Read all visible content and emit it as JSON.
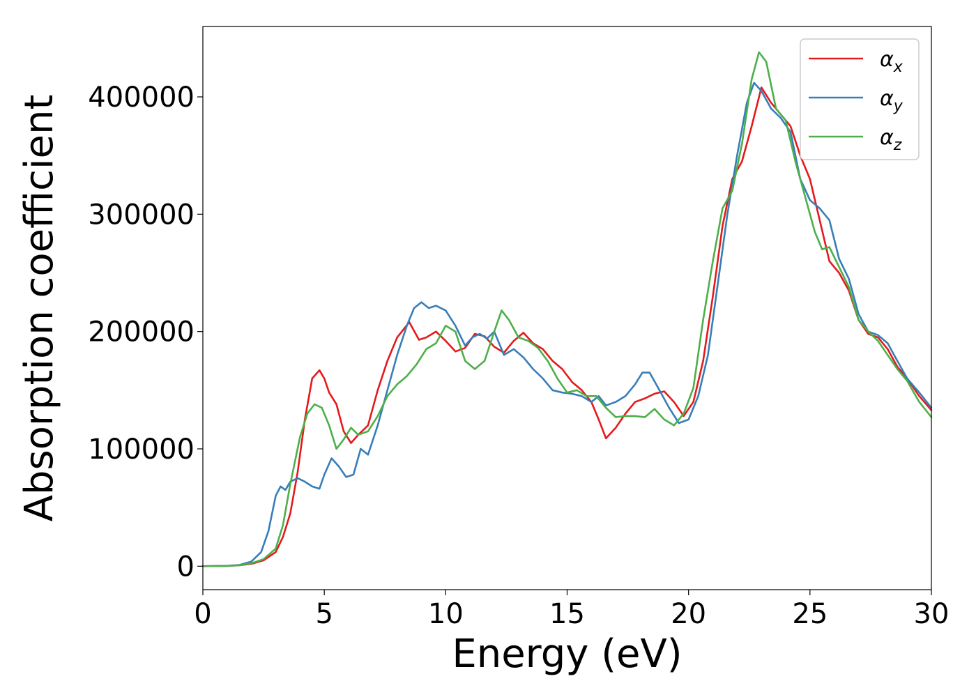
{
  "chart_data": {
    "type": "line",
    "title": "",
    "xlabel": "Energy (eV)",
    "ylabel": "Absorption coefficient",
    "xlim": [
      0,
      30
    ],
    "ylim": [
      -20000,
      460000
    ],
    "xticks": [
      0,
      5,
      10,
      15,
      20,
      25,
      30
    ],
    "yticks": [
      0,
      100000,
      200000,
      300000,
      400000
    ],
    "grid": false,
    "legend_position": "top-right",
    "series": [
      {
        "name": "αx",
        "legend_base": "α",
        "legend_sub": "x",
        "color": "#e41a1c",
        "x": [
          0,
          1,
          1.5,
          2,
          2.5,
          3,
          3.3,
          3.6,
          3.9,
          4.2,
          4.5,
          4.8,
          5.0,
          5.2,
          5.5,
          5.8,
          6.1,
          6.4,
          6.8,
          7.2,
          7.6,
          8.0,
          8.5,
          8.9,
          9.2,
          9.6,
          10.0,
          10.4,
          10.8,
          11.2,
          11.6,
          12.0,
          12.4,
          12.8,
          13.2,
          13.6,
          14.0,
          14.4,
          14.8,
          15.2,
          15.6,
          16.0,
          16.3,
          16.6,
          17.0,
          17.4,
          17.8,
          18.2,
          18.6,
          19.0,
          19.4,
          19.8,
          20.2,
          20.6,
          21.0,
          21.4,
          21.8,
          22.2,
          22.6,
          23.0,
          23.4,
          23.8,
          24.2,
          24.6,
          25.0,
          25.4,
          25.8,
          26.2,
          26.6,
          27.0,
          27.4,
          27.8,
          28.2,
          28.6,
          29.0,
          29.5,
          30.0
        ],
        "y": [
          0,
          200,
          800,
          2000,
          5000,
          12000,
          25000,
          45000,
          80000,
          125000,
          160000,
          167000,
          160000,
          148000,
          138000,
          115000,
          105000,
          112000,
          120000,
          150000,
          175000,
          195000,
          208000,
          193000,
          195000,
          200000,
          192000,
          183000,
          186000,
          198000,
          196000,
          187000,
          182000,
          192000,
          199000,
          190000,
          185000,
          175000,
          168000,
          157000,
          150000,
          140000,
          125000,
          109000,
          118000,
          130000,
          140000,
          143000,
          147000,
          149000,
          140000,
          128000,
          140000,
          175000,
          230000,
          290000,
          330000,
          345000,
          375000,
          408000,
          395000,
          385000,
          375000,
          350000,
          330000,
          295000,
          260000,
          250000,
          235000,
          210000,
          198000,
          195000,
          185000,
          170000,
          160000,
          145000,
          133000
        ]
      },
      {
        "name": "αy",
        "legend_base": "α",
        "legend_sub": "y",
        "color": "#377eb8",
        "x": [
          0,
          1,
          1.5,
          2,
          2.4,
          2.7,
          3.0,
          3.2,
          3.4,
          3.6,
          3.9,
          4.2,
          4.5,
          4.8,
          5.0,
          5.3,
          5.6,
          5.9,
          6.2,
          6.5,
          6.8,
          7.2,
          7.6,
          8.0,
          8.4,
          8.7,
          9.0,
          9.3,
          9.6,
          10.0,
          10.4,
          10.8,
          11.1,
          11.4,
          11.7,
          12.0,
          12.4,
          12.8,
          13.2,
          13.6,
          14.0,
          14.4,
          14.8,
          15.2,
          15.6,
          16.0,
          16.3,
          16.6,
          17.0,
          17.4,
          17.8,
          18.1,
          18.4,
          18.8,
          19.2,
          19.6,
          20.0,
          20.4,
          20.8,
          21.2,
          21.6,
          22.0,
          22.4,
          22.7,
          23.0,
          23.4,
          23.8,
          24.2,
          24.6,
          25.0,
          25.4,
          25.8,
          26.2,
          26.6,
          27.0,
          27.4,
          27.8,
          28.2,
          28.6,
          29.0,
          29.5,
          30.0
        ],
        "y": [
          0,
          300,
          1000,
          4000,
          12000,
          30000,
          60000,
          68000,
          65000,
          72000,
          75000,
          72000,
          68000,
          66000,
          78000,
          92000,
          85000,
          76000,
          78000,
          100000,
          95000,
          120000,
          150000,
          180000,
          205000,
          220000,
          225000,
          220000,
          222000,
          218000,
          205000,
          188000,
          195000,
          198000,
          194000,
          200000,
          180000,
          185000,
          178000,
          168000,
          160000,
          150000,
          148000,
          147000,
          145000,
          140000,
          145000,
          137000,
          140000,
          145000,
          155000,
          165000,
          165000,
          150000,
          135000,
          122000,
          125000,
          145000,
          180000,
          240000,
          300000,
          350000,
          395000,
          412000,
          405000,
          390000,
          382000,
          370000,
          330000,
          312000,
          305000,
          295000,
          262000,
          245000,
          215000,
          200000,
          197000,
          190000,
          175000,
          160000,
          148000,
          135000
        ]
      },
      {
        "name": "αz",
        "legend_base": "α",
        "legend_sub": "z",
        "color": "#4daf4a",
        "x": [
          0,
          1,
          1.5,
          2,
          2.5,
          3,
          3.3,
          3.6,
          4.0,
          4.3,
          4.6,
          4.9,
          5.2,
          5.5,
          5.8,
          6.1,
          6.4,
          6.8,
          7.2,
          7.6,
          8.0,
          8.4,
          8.8,
          9.2,
          9.6,
          10.0,
          10.4,
          10.8,
          11.2,
          11.6,
          12.0,
          12.3,
          12.6,
          13.0,
          13.4,
          13.8,
          14.2,
          14.6,
          15.0,
          15.4,
          15.8,
          16.2,
          16.6,
          17.0,
          17.4,
          17.8,
          18.2,
          18.6,
          19.0,
          19.4,
          19.8,
          20.2,
          20.6,
          21.0,
          21.4,
          21.8,
          22.2,
          22.6,
          22.9,
          23.2,
          23.6,
          24.0,
          24.4,
          24.8,
          25.2,
          25.5,
          25.8,
          26.2,
          26.6,
          27.0,
          27.4,
          27.8,
          28.2,
          28.6,
          29.0,
          29.5,
          30.0
        ],
        "y": [
          0,
          200,
          800,
          2500,
          6000,
          15000,
          35000,
          70000,
          110000,
          130000,
          138000,
          135000,
          120000,
          100000,
          108000,
          118000,
          112000,
          115000,
          128000,
          145000,
          155000,
          162000,
          172000,
          185000,
          190000,
          205000,
          200000,
          175000,
          168000,
          175000,
          200000,
          218000,
          210000,
          195000,
          192000,
          186000,
          175000,
          160000,
          148000,
          150000,
          145000,
          145000,
          135000,
          127000,
          128000,
          128000,
          127000,
          134000,
          125000,
          120000,
          130000,
          152000,
          210000,
          260000,
          305000,
          320000,
          360000,
          415000,
          438000,
          430000,
          390000,
          380000,
          345000,
          315000,
          285000,
          270000,
          272000,
          255000,
          238000,
          210000,
          200000,
          192000,
          180000,
          168000,
          158000,
          140000,
          127000
        ]
      }
    ]
  }
}
